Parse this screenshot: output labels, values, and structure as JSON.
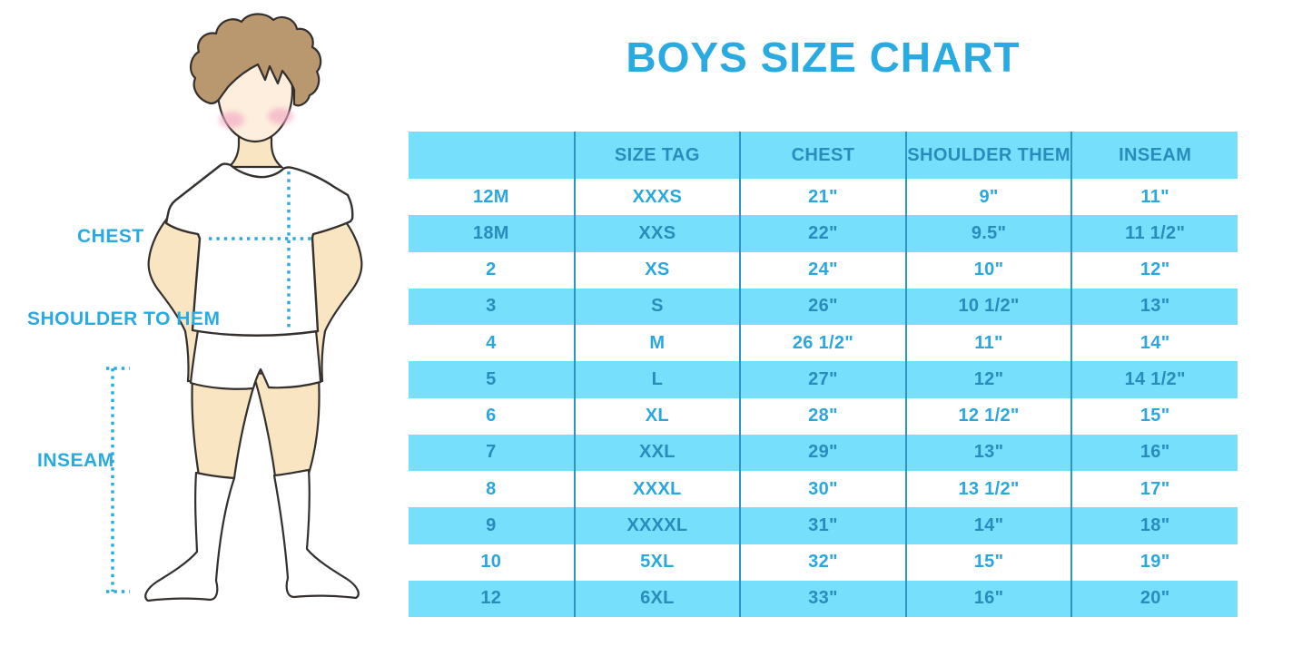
{
  "title": "BOYS SIZE CHART",
  "illustration": {
    "figure": "boy-in-tshirt-shorts-and-socks",
    "labels": {
      "chest": "CHEST",
      "shoulder_to_hem": "SHOULDER TO HEM",
      "inseam": "INSEAM"
    }
  },
  "table": {
    "headers": [
      "",
      "SIZE TAG",
      "CHEST",
      "SHOULDER THEM",
      "INSEAM"
    ],
    "rows": [
      [
        "12M",
        "XXXS",
        "21\"",
        "9\"",
        "11\""
      ],
      [
        "18M",
        "XXS",
        "22\"",
        "9.5\"",
        "11 1/2\""
      ],
      [
        "2",
        "XS",
        "24\"",
        "10\"",
        "12\""
      ],
      [
        "3",
        "S",
        "26\"",
        "10 1/2\"",
        "13\""
      ],
      [
        "4",
        "M",
        "26 1/2\"",
        "11\"",
        "14\""
      ],
      [
        "5",
        "L",
        "27\"",
        "12\"",
        "14 1/2\""
      ],
      [
        "6",
        "XL",
        "28\"",
        "12 1/2\"",
        "15\""
      ],
      [
        "7",
        "XXL",
        "29\"",
        "13\"",
        "16\""
      ],
      [
        "8",
        "XXXL",
        "30\"",
        "13 1/2\"",
        "17\""
      ],
      [
        "9",
        "XXXXL",
        "31\"",
        "14\"",
        "18\""
      ],
      [
        "10",
        "5XL",
        "32\"",
        "15\"",
        "19\""
      ],
      [
        "12",
        "6XL",
        "33\"",
        "16\"",
        "20\""
      ]
    ]
  },
  "colors": {
    "accent_blue": "#29abe2",
    "stripe_cyan": "#76e0fc",
    "stripe_text": "#2a8bbd",
    "white_row_text": "#29a7de",
    "column_divider": "#2e94c6",
    "hair": "#b9976f",
    "skin": "#fae5c2",
    "face": "#fdeedd",
    "cheek_pink": "#f2a9c4",
    "outline": "#33302e"
  },
  "chart_data": {
    "type": "table",
    "title": "BOYS SIZE CHART",
    "columns": [
      "",
      "SIZE TAG",
      "CHEST",
      "SHOULDER THEM",
      "INSEAM"
    ],
    "rows": [
      [
        "12M",
        "XXXS",
        "21\"",
        "9\"",
        "11\""
      ],
      [
        "18M",
        "XXS",
        "22\"",
        "9.5\"",
        "11 1/2\""
      ],
      [
        "2",
        "XS",
        "24\"",
        "10\"",
        "12\""
      ],
      [
        "3",
        "S",
        "26\"",
        "10 1/2\"",
        "13\""
      ],
      [
        "4",
        "M",
        "26 1/2\"",
        "11\"",
        "14\""
      ],
      [
        "5",
        "L",
        "27\"",
        "12\"",
        "14 1/2\""
      ],
      [
        "6",
        "XL",
        "28\"",
        "12 1/2\"",
        "15\""
      ],
      [
        "7",
        "XXL",
        "29\"",
        "13\"",
        "16\""
      ],
      [
        "8",
        "XXXL",
        "30\"",
        "13 1/2\"",
        "17\""
      ],
      [
        "9",
        "XXXXL",
        "31\"",
        "14\"",
        "18\""
      ],
      [
        "10",
        "5XL",
        "32\"",
        "15\"",
        "19\""
      ],
      [
        "12",
        "6XL",
        "33\"",
        "16\"",
        "20\""
      ]
    ],
    "layout": {
      "striped": true,
      "stripe_color": "#76e0fc",
      "legend": "none",
      "grid": "vertical-dividers-only"
    }
  }
}
